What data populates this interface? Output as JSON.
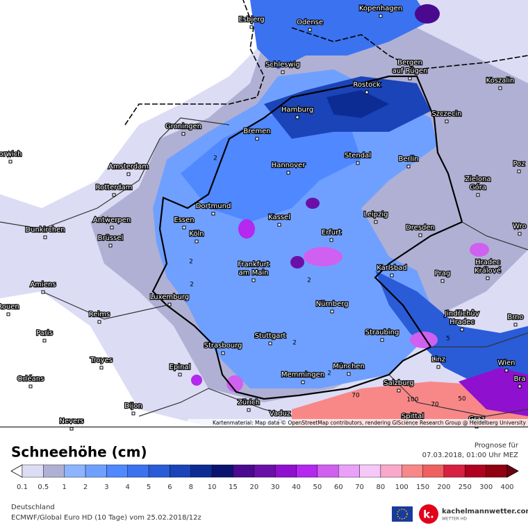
{
  "map": {
    "attribution": "Kartenmaterial: Map data © OpenStreetMap contributors, rendering GIScience Research Group @ Heidelberg University",
    "cities": [
      {
        "lines": [
          "Esbjerg"
        ]
      },
      {
        "lines": [
          "Odense"
        ]
      },
      {
        "lines": [
          "Kopenhagen"
        ]
      },
      {
        "lines": [
          "Schleswig"
        ]
      },
      {
        "lines": [
          "Bergen",
          "auf Rügen"
        ]
      },
      {
        "lines": [
          "Rostock"
        ]
      },
      {
        "lines": [
          "Koszalin"
        ]
      },
      {
        "lines": [
          "Hamburg"
        ]
      },
      {
        "lines": [
          "Szczecin"
        ]
      },
      {
        "lines": [
          "Groningen"
        ]
      },
      {
        "lines": [
          "Bremen"
        ]
      },
      {
        "lines": [
          "orwich"
        ]
      },
      {
        "lines": [
          "Amsterdam"
        ]
      },
      {
        "lines": [
          "Hannover"
        ]
      },
      {
        "lines": [
          "Stendal"
        ]
      },
      {
        "lines": [
          "Berlin"
        ]
      },
      {
        "lines": [
          "Rotterdam"
        ]
      },
      {
        "lines": [
          "Zielona",
          "Góra"
        ]
      },
      {
        "lines": [
          "Dortmund"
        ]
      },
      {
        "lines": [
          "Poz"
        ]
      },
      {
        "lines": [
          "Essen"
        ]
      },
      {
        "lines": [
          "Kassel"
        ]
      },
      {
        "lines": [
          "Leipzig"
        ]
      },
      {
        "lines": [
          "Antwerpen"
        ]
      },
      {
        "lines": [
          "Dunkirchen"
        ]
      },
      {
        "lines": [
          "Köln"
        ]
      },
      {
        "lines": [
          "Erfurt"
        ]
      },
      {
        "lines": [
          "Dresden"
        ]
      },
      {
        "lines": [
          "Wro"
        ]
      },
      {
        "lines": [
          "Brüssel"
        ]
      },
      {
        "lines": [
          "Frankfurt",
          "am Main"
        ]
      },
      {
        "lines": [
          "Karlsbad"
        ]
      },
      {
        "lines": [
          "Hradec",
          "Králové"
        ]
      },
      {
        "lines": [
          "Amiens"
        ]
      },
      {
        "lines": [
          "Prag"
        ]
      },
      {
        "lines": [
          "Luxemburg"
        ]
      },
      {
        "lines": [
          "Rouen"
        ]
      },
      {
        "lines": [
          "Reims"
        ]
      },
      {
        "lines": [
          "Nürnberg"
        ]
      },
      {
        "lines": [
          "Jindřichův",
          "Hradec"
        ]
      },
      {
        "lines": [
          "Brno"
        ]
      },
      {
        "lines": [
          "Paris"
        ]
      },
      {
        "lines": [
          "Stuttgart"
        ]
      },
      {
        "lines": [
          "Straubing"
        ]
      },
      {
        "lines": [
          "Troyes"
        ]
      },
      {
        "lines": [
          "Strasbourg"
        ]
      },
      {
        "lines": [
          "Linz"
        ]
      },
      {
        "lines": [
          "Wien"
        ]
      },
      {
        "lines": [
          "Epinal"
        ]
      },
      {
        "lines": [
          "München"
        ]
      },
      {
        "lines": [
          "Orléans"
        ]
      },
      {
        "lines": [
          "Memmingen"
        ]
      },
      {
        "lines": [
          "Salzburg"
        ]
      },
      {
        "lines": [
          "Bra"
        ]
      },
      {
        "lines": [
          "Zürich"
        ]
      },
      {
        "lines": [
          "Dijon"
        ]
      },
      {
        "lines": [
          "Vaduz"
        ]
      },
      {
        "lines": [
          "Nevers"
        ]
      },
      {
        "lines": [
          "Graz"
        ]
      },
      {
        "lines": [
          "Spittal"
        ]
      }
    ],
    "contour_labels": [
      "2",
      "2",
      "2",
      "2",
      "2",
      "2",
      "5",
      "70",
      "100",
      "50",
      "70"
    ]
  },
  "footer": {
    "title": "Schneehöhe (cm)",
    "forecast_label": "Prognose für",
    "forecast_time": "07.03.2018, 01:00 Uhr MEZ",
    "region": "Deutschland",
    "model": "ECMWF/Global Euro HD (10 Tage) vom 25.02.2018/12z",
    "brand": "kachelmannwetter.com",
    "brand_sub": "WETTER HD"
  },
  "legend": {
    "labels": [
      "0.1",
      "0.5",
      "1",
      "2",
      "3",
      "4",
      "5",
      "6",
      "8",
      "10",
      "15",
      "20",
      "30",
      "40",
      "50",
      "60",
      "70",
      "80",
      "100",
      "150",
      "200",
      "250",
      "300",
      "400"
    ],
    "colors": [
      "#ffffff",
      "#dcdcf5",
      "#b0b0d4",
      "#8cb4ff",
      "#6fa0ff",
      "#4f88ff",
      "#3a72f0",
      "#2a5cd8",
      "#1a44b8",
      "#0c2c94",
      "#0a1470",
      "#4a0a90",
      "#6a10a8",
      "#9010d0",
      "#b428f0",
      "#d060f0",
      "#e8a0f8",
      "#f5c8f8",
      "#f8a8c8",
      "#f88888",
      "#f06060",
      "#d82040",
      "#b00020",
      "#900010",
      "#700010"
    ]
  }
}
